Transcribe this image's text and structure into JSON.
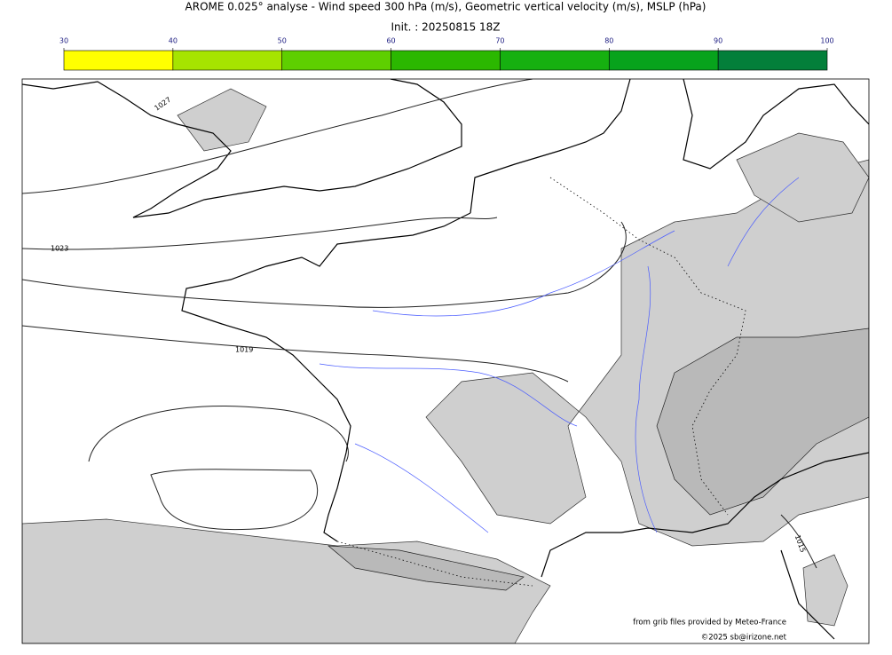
{
  "title": "AROME 0.025° analyse - Wind speed 300 hPa (m/s), Geometric vertical velocity (m/s), MSLP (hPa)",
  "subtitle": "Init. : 20250815 18Z",
  "colorbar": {
    "ticks": [
      30,
      40,
      50,
      60,
      70,
      80,
      90,
      100
    ],
    "colors": [
      "#ffff00",
      "#a6e400",
      "#5ecf00",
      "#2bb800",
      "#16b010",
      "#07a31c",
      "#037f3a",
      "#057550"
    ]
  },
  "isobar_labels": [
    "1027",
    "1023",
    "1019",
    "1015"
  ],
  "credits": [
    "from grib files provided by Meteo-France",
    "©2025 sb@irizone.net"
  ]
}
